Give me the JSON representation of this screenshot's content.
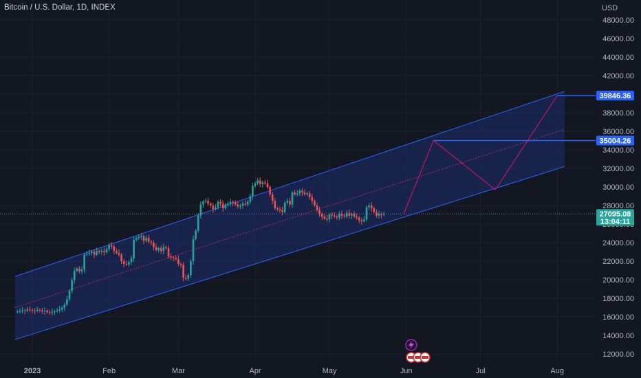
{
  "header": {
    "title": "Bitcoin / U.S. Dollar, 1D, INDEX"
  },
  "colors": {
    "background": "#131722",
    "grid": "#1e222d",
    "up": "#26a69a",
    "down": "#ef5350",
    "channel": "#2962ff",
    "channel_fill": "#1c2e6b",
    "midline": "#b03060",
    "projection": "#c2185b",
    "price_badge": "#26a69a",
    "level_badge": "#2962ff"
  },
  "icons": [
    "lightning-icon",
    "flag-icons"
  ],
  "chart_data": {
    "type": "candlestick",
    "currency_label": "USD",
    "y_ticks": [
      12000,
      14000,
      16000,
      18000,
      20000,
      22000,
      24000,
      26000,
      28000,
      30000,
      32000,
      34000,
      36000,
      38000,
      40000,
      42000,
      44000,
      46000,
      48000
    ],
    "y_tick_labels": [
      "12000.00",
      "14000.00",
      "16000.00",
      "18000.00",
      "20000.00",
      "22000.00",
      "24000.00",
      "26000.00",
      "28000.00",
      "30000.00",
      "32000.00",
      "34000.00",
      "36000.00",
      "38000.00",
      "40000.00",
      "42000.00",
      "44000.00",
      "46000.00",
      "48000.00"
    ],
    "x_ticks": [
      {
        "label": "2023",
        "date": "2023-01-01",
        "bold": true
      },
      {
        "label": "Feb",
        "date": "2023-02-01",
        "bold": false
      },
      {
        "label": "Mar",
        "date": "2023-03-01",
        "bold": false
      },
      {
        "label": "Apr",
        "date": "2023-04-01",
        "bold": false
      },
      {
        "label": "May",
        "date": "2023-05-01",
        "bold": false
      },
      {
        "label": "Jun",
        "date": "2023-06-01",
        "bold": false
      },
      {
        "label": "Jul",
        "date": "2023-07-01",
        "bold": false
      },
      {
        "label": "Aug",
        "date": "2023-08-01",
        "bold": false
      }
    ],
    "closes": [
      16600,
      16650,
      16700,
      16650,
      16800,
      16750,
      16700,
      16650,
      16750,
      16700,
      16600,
      16650,
      16500,
      16450,
      16550,
      16600,
      16700,
      16800,
      17000,
      17300,
      17900,
      18800,
      19950,
      20950,
      21200,
      20900,
      21100,
      22700,
      22800,
      22900,
      23000,
      22700,
      23100,
      23000,
      23100,
      22950,
      23300,
      23700,
      23600,
      23100,
      22900,
      22700,
      22000,
      21700,
      21650,
      21900,
      22300,
      24300,
      24500,
      24600,
      24700,
      24200,
      24500,
      24100,
      24000,
      23500,
      23200,
      23400,
      23100,
      23500,
      23400,
      22500,
      22400,
      22350,
      22200,
      21700,
      21600,
      20200,
      20100,
      20500,
      22000,
      24400,
      25300,
      26900,
      28100,
      28400,
      28500,
      28200,
      28000,
      27600,
      27800,
      28400,
      28200,
      27700,
      28100,
      28200,
      28400,
      28300,
      28100,
      27900,
      28000,
      28200,
      28100,
      28400,
      29000,
      30100,
      30400,
      30700,
      30300,
      30500,
      30400,
      30000,
      29200,
      28500,
      27700,
      27600,
      27500,
      27300,
      28300,
      28500,
      28100,
      29400,
      29200,
      29300,
      29600,
      29400,
      29200,
      29300,
      28900,
      28500,
      28000,
      27500,
      27100,
      26800,
      26600,
      26500,
      27000,
      26900,
      26800,
      26700,
      27100,
      26900,
      26800,
      27200,
      26900,
      27100,
      26800,
      26700,
      26400,
      26300,
      26500,
      27800,
      28000,
      27700,
      27300,
      26900,
      27100,
      27000,
      27095
    ],
    "start_date": "2022-12-26",
    "channel": {
      "upper": [
        {
          "date": "2022-12-25",
          "y": 20350
        },
        {
          "date": "2023-08-04",
          "y": 40300
        }
      ],
      "lower": [
        {
          "date": "2022-12-25",
          "y": 13550
        },
        {
          "date": "2023-08-04",
          "y": 32200
        }
      ],
      "mid": [
        {
          "date": "2022-12-25",
          "y": 17000
        },
        {
          "date": "2023-08-04",
          "y": 36200
        }
      ]
    },
    "projection_path": [
      {
        "date": "2023-05-31",
        "y": 27095
      },
      {
        "date": "2023-06-12",
        "y": 35004
      },
      {
        "date": "2023-07-07",
        "y": 29700
      },
      {
        "date": "2023-08-01",
        "y": 39846
      }
    ],
    "levels": [
      {
        "value": 39846.36,
        "label": "39846.36",
        "from_date": "2023-08-01"
      },
      {
        "value": 35004.26,
        "label": "35004.26",
        "from_date": "2023-06-12"
      }
    ],
    "last_price": {
      "value": 27095.08,
      "label": "27095.08",
      "countdown": "13:04:11"
    }
  }
}
